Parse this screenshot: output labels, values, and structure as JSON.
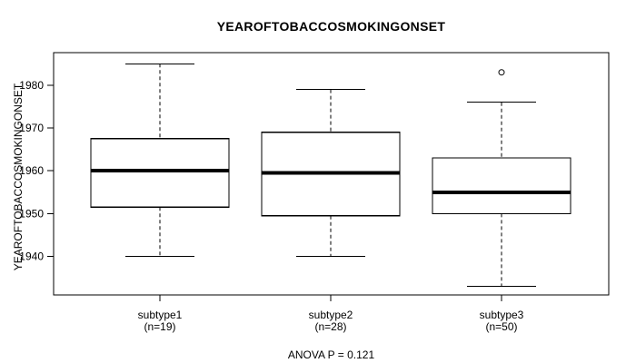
{
  "chart_data": {
    "type": "boxplot",
    "title": "YEAROFTOBACCOSMOKINGONSET",
    "ylabel": "YEAROFTOBACCOSMOKINGONSET",
    "annotation": "ANOVA P = 0.121",
    "yticks": [
      1940,
      1950,
      1960,
      1970,
      1980
    ],
    "ylim": [
      1931,
      1987.6
    ],
    "grid": false,
    "groups": [
      {
        "label": "subtype1",
        "n_label": "(n=19)",
        "n": 19,
        "whisker_low": 1940,
        "q1": 1951.5,
        "median": 1960,
        "q3": 1967.5,
        "whisker_high": 1985,
        "outliers": []
      },
      {
        "label": "subtype2",
        "n_label": "(n=28)",
        "n": 28,
        "whisker_low": 1940,
        "q1": 1949.5,
        "median": 1959.5,
        "q3": 1969,
        "whisker_high": 1979,
        "outliers": []
      },
      {
        "label": "subtype3",
        "n_label": "(n=50)",
        "n": 50,
        "whisker_low": 1933,
        "q1": 1950,
        "median": 1955,
        "q3": 1963,
        "whisker_high": 1976,
        "outliers": [
          1983
        ]
      }
    ],
    "colors": {
      "line": "#000000",
      "box_fill": "#ffffff",
      "background": "#ffffff",
      "text": "#000000"
    }
  }
}
